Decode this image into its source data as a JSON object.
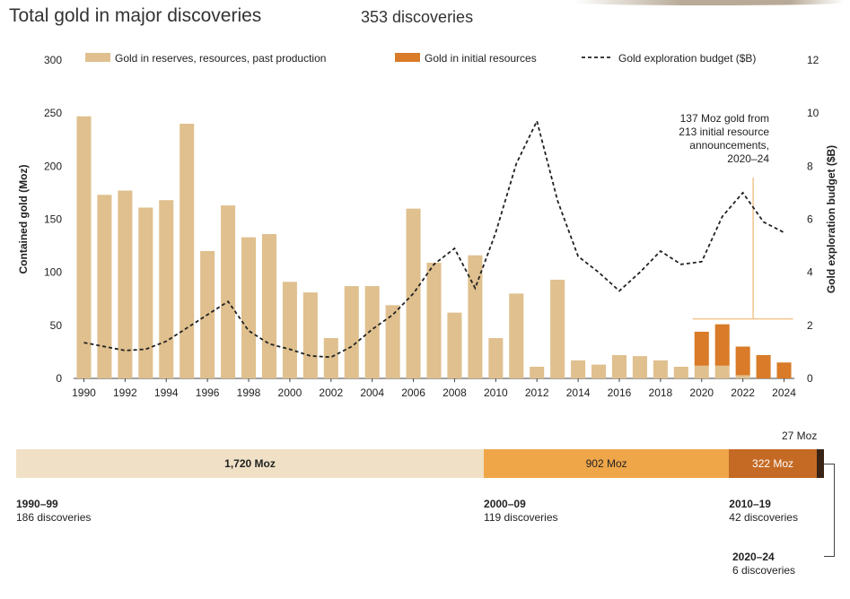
{
  "header": {
    "title": "Total gold in major discoveries",
    "subtitle": "353 discoveries"
  },
  "chart_data": {
    "type": "bar",
    "x": [
      1990,
      1991,
      1992,
      1993,
      1994,
      1995,
      1996,
      1997,
      1998,
      1999,
      2000,
      2001,
      2002,
      2003,
      2004,
      2005,
      2006,
      2007,
      2008,
      2009,
      2010,
      2011,
      2012,
      2013,
      2014,
      2015,
      2016,
      2017,
      2018,
      2019,
      2020,
      2021,
      2022,
      2023,
      2024
    ],
    "xticks": [
      "1990",
      "1992",
      "1994",
      "1996",
      "1998",
      "2000",
      "2002",
      "2004",
      "2006",
      "2008",
      "2010",
      "2012",
      "2014",
      "2016",
      "2018",
      "2020",
      "2022",
      "2024"
    ],
    "ylabel": "Contained gold (Moz)",
    "y2label": "Gold exploration budget ($B)",
    "ylim": [
      0,
      300
    ],
    "y2lim": [
      0,
      12
    ],
    "yticks": [
      "0",
      "50",
      "100",
      "150",
      "200",
      "250",
      "300"
    ],
    "y2ticks": [
      "0",
      "2",
      "4",
      "6",
      "8",
      "10",
      "12"
    ],
    "legend_position": "top",
    "series": [
      {
        "name": "Gold in reserves, resources, past production",
        "color": "#dfc08e",
        "values": [
          247,
          173,
          177,
          161,
          168,
          240,
          120,
          163,
          133,
          136,
          91,
          81,
          38,
          87,
          87,
          69,
          160,
          109,
          62,
          116,
          38,
          80,
          11,
          93,
          17,
          13,
          22,
          21,
          17,
          11,
          12,
          12,
          3,
          0,
          0
        ]
      },
      {
        "name": "Gold in initial resources",
        "color": "#d97b28",
        "values": [
          0,
          0,
          0,
          0,
          0,
          0,
          0,
          0,
          0,
          0,
          0,
          0,
          0,
          0,
          0,
          0,
          0,
          0,
          0,
          0,
          0,
          0,
          0,
          0,
          0,
          0,
          0,
          0,
          0,
          0,
          32,
          39,
          27,
          22,
          15
        ]
      },
      {
        "name": "Gold exploration budget ($B)",
        "color": "#222222",
        "style": "dashed",
        "values": [
          1.35,
          1.2,
          1.05,
          1.1,
          1.4,
          1.9,
          2.4,
          2.9,
          1.8,
          1.3,
          1.1,
          0.85,
          0.8,
          1.2,
          1.85,
          2.4,
          3.2,
          4.3,
          4.9,
          3.4,
          5.5,
          8.1,
          9.7,
          6.7,
          4.6,
          4.0,
          3.3,
          4.0,
          4.8,
          4.3,
          4.4,
          6.1,
          7.0,
          5.9,
          5.5
        ]
      }
    ],
    "annotation": {
      "text_lines": [
        "137 Moz gold from",
        "213 initial resource",
        "announcements,",
        "2020–24"
      ]
    },
    "decades": [
      {
        "value_label": "1,720 Moz",
        "value": 1720,
        "period": "1990–99",
        "count": "186 discoveries",
        "color": "#f0e0c6"
      },
      {
        "value_label": "902 Moz",
        "value": 902,
        "period": "2000–09",
        "count": "119 discoveries",
        "color": "#efa649"
      },
      {
        "value_label": "322 Moz",
        "value": 322,
        "period": "2010–19",
        "count": "42 discoveries",
        "color": "#c46a24"
      },
      {
        "value_label": "27 Moz",
        "value": 27,
        "period": "2020–24",
        "count": "6 discoveries",
        "color": "#3a2416"
      }
    ]
  }
}
